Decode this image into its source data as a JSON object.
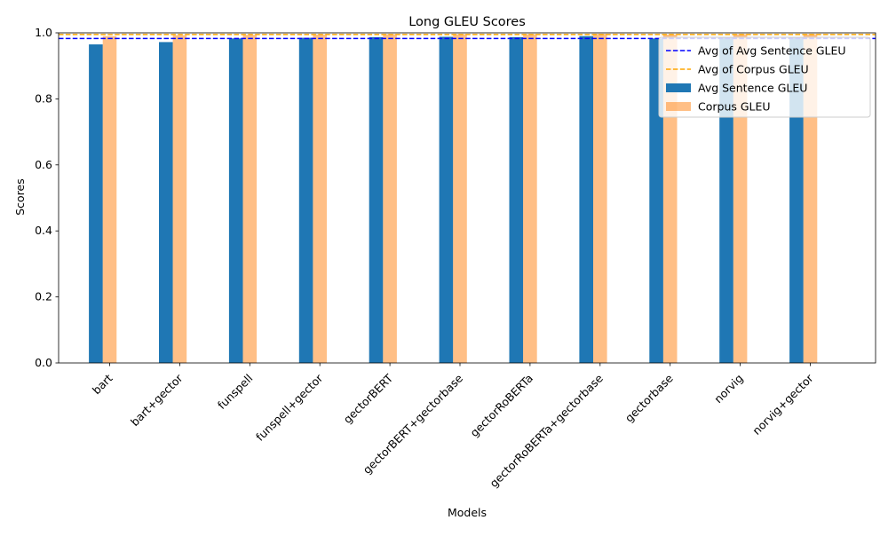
{
  "chart_data": {
    "type": "bar",
    "title": "Long GLEU Scores",
    "xlabel": "Models",
    "ylabel": "Scores",
    "ylim": [
      0,
      1.0
    ],
    "yticks": [
      0.0,
      0.2,
      0.4,
      0.6,
      0.8,
      1.0
    ],
    "ytick_labels": [
      "0.0",
      "0.2",
      "0.4",
      "0.6",
      "0.8",
      "1.0"
    ],
    "categories": [
      "bart",
      "bart+gector",
      "funspell",
      "funspell+gector",
      "gectorBERT",
      "gectorBERT+gectorbase",
      "gectorRoBERTa",
      "gectorRoBERTa+gectorbase",
      "gectorbase",
      "norvig",
      "norvig+gector"
    ],
    "series": [
      {
        "name": "Avg Sentence GLEU",
        "color": "#1f77b4",
        "opacity": 1.0,
        "values": [
          0.965,
          0.972,
          0.983,
          0.985,
          0.987,
          0.988,
          0.987,
          0.99,
          0.983,
          0.986,
          0.987
        ]
      },
      {
        "name": "Corpus GLEU",
        "color": "#ff7f0e",
        "opacity": 0.5,
        "values": [
          0.99,
          0.993,
          0.994,
          0.995,
          0.996,
          0.996,
          0.996,
          0.997,
          0.995,
          0.996,
          0.996
        ]
      }
    ],
    "reference_lines": [
      {
        "name": "Avg of Avg Sentence GLEU",
        "value": 0.983,
        "color": "#0000ff",
        "style": "dashed"
      },
      {
        "name": "Avg of Corpus GLEU",
        "value": 0.995,
        "color": "#ffa500",
        "style": "dashed"
      }
    ],
    "legend_position": "top-right",
    "grid": false
  }
}
